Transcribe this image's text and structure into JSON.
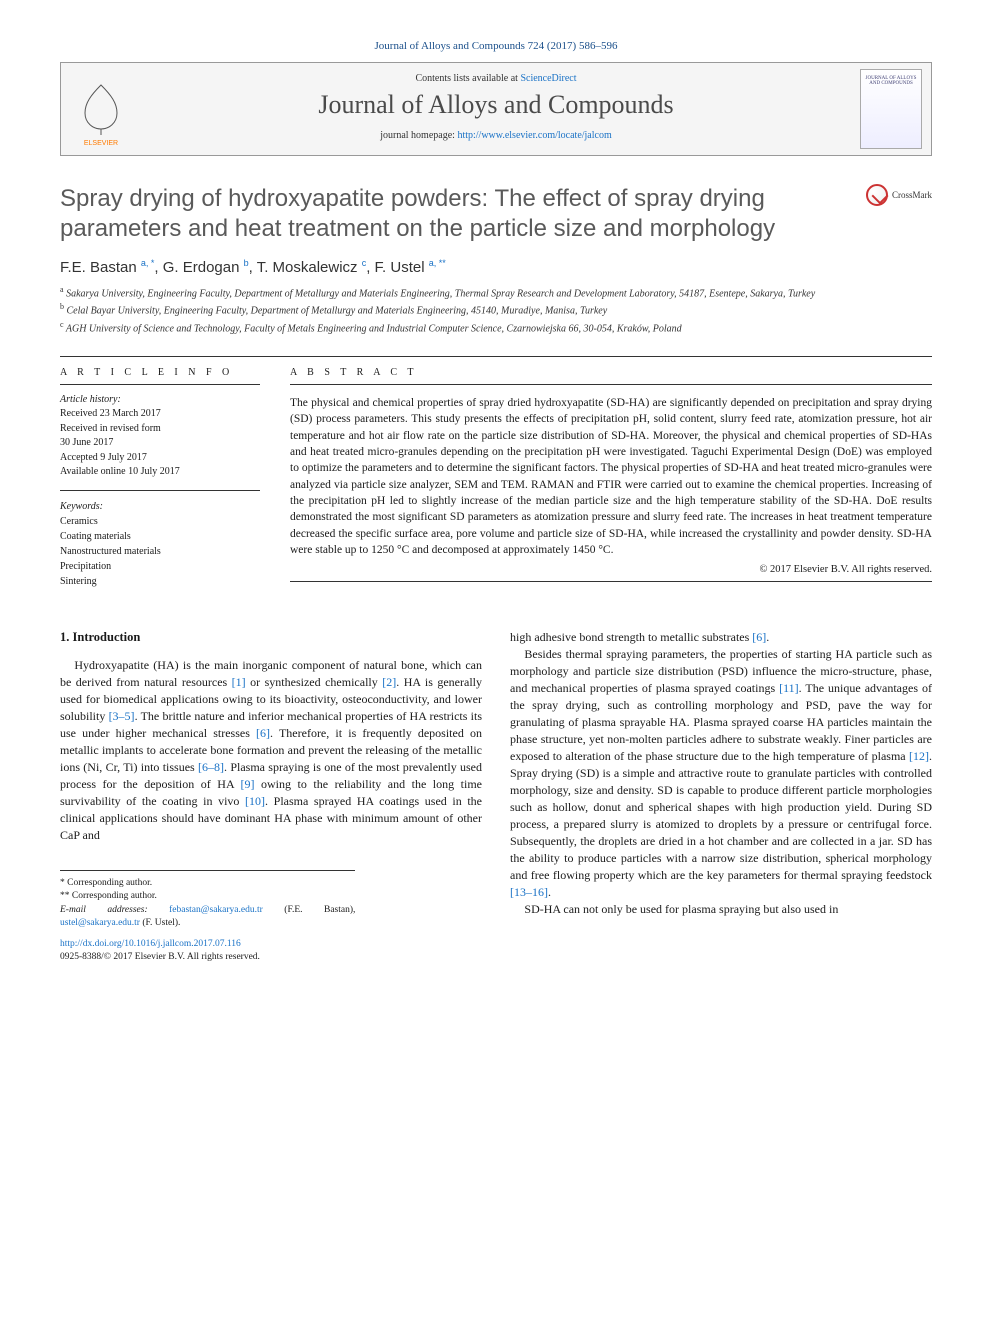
{
  "journal_ref": "Journal of Alloys and Compounds 724 (2017) 586–596",
  "header": {
    "contents_prefix": "Contents lists available at ",
    "contents_link": "ScienceDirect",
    "journal_name": "Journal of Alloys and Compounds",
    "homepage_prefix": "journal homepage: ",
    "homepage_url": "http://www.elsevier.com/locate/jalcom",
    "elsevier_label": "ELSEVIER",
    "cover_label": "JOURNAL OF ALLOYS AND COMPOUNDS"
  },
  "crossmark_label": "CrossMark",
  "title": "Spray drying of hydroxyapatite powders: The effect of spray drying parameters and heat treatment on the particle size and morphology",
  "authors_html": "F.E. Bastan <sup class='sup-link'>a, *</sup>, G. Erdogan <sup class='sup-link'>b</sup>, T. Moskalewicz <sup class='sup-link'>c</sup>, F. Ustel <sup class='sup-link'>a, **</sup>",
  "affiliations": [
    {
      "key": "a",
      "text": "Sakarya University, Engineering Faculty, Department of Metallurgy and Materials Engineering, Thermal Spray Research and Development Laboratory, 54187, Esentepe, Sakarya, Turkey"
    },
    {
      "key": "b",
      "text": "Celal Bayar University, Engineering Faculty, Department of Metallurgy and Materials Engineering, 45140, Muradiye, Manisa, Turkey"
    },
    {
      "key": "c",
      "text": "AGH University of Science and Technology, Faculty of Metals Engineering and Industrial Computer Science, Czarnowiejska 66, 30-054, Kraków, Poland"
    }
  ],
  "article_info": {
    "heading": "A R T I C L E  I N F O",
    "history_label": "Article history:",
    "history": [
      "Received 23 March 2017",
      "Received in revised form",
      "30 June 2017",
      "Accepted 9 July 2017",
      "Available online 10 July 2017"
    ],
    "keywords_label": "Keywords:",
    "keywords": [
      "Ceramics",
      "Coating materials",
      "Nanostructured materials",
      "Precipitation",
      "Sintering"
    ]
  },
  "abstract": {
    "heading": "A B S T R A C T",
    "text": "The physical and chemical properties of spray dried hydroxyapatite (SD-HA) are significantly depended on precipitation and spray drying (SD) process parameters. This study presents the effects of precipitation pH, solid content, slurry feed rate, atomization pressure, hot air temperature and hot air flow rate on the particle size distribution of SD-HA. Moreover, the physical and chemical properties of SD-HAs and heat treated micro-granules depending on the precipitation pH were investigated. Taguchi Experimental Design (DoE) was employed to optimize the parameters and to determine the significant factors. The physical properties of SD-HA and heat treated micro-granules were analyzed via particle size analyzer, SEM and TEM. RAMAN and FTIR were carried out to examine the chemical properties. Increasing of the precipitation pH led to slightly increase of the median particle size and the high temperature stability of the SD-HA. DoE results demonstrated the most significant SD parameters as atomization pressure and slurry feed rate. The increases in heat treatment temperature decreased the specific surface area, pore volume and particle size of SD-HA, while increased the crystallinity and powder density. SD-HA were stable up to 1250 °C and decomposed at approximately 1450 °C.",
    "copyright": "© 2017 Elsevier B.V. All rights reserved."
  },
  "intro": {
    "heading": "1. Introduction",
    "col1": [
      "Hydroxyapatite (HA) is the main inorganic component of natural bone, which can be derived from natural resources [1] or synthesized chemically [2]. HA is generally used for biomedical applications owing to its bioactivity, osteoconductivity, and lower solubility [3–5]. The brittle nature and inferior mechanical properties of HA restricts its use under higher mechanical stresses [6]. Therefore, it is frequently deposited on metallic implants to accelerate bone formation and prevent the releasing of the metallic ions (Ni, Cr, Ti) into tissues [6–8]. Plasma spraying is one of the most prevalently used process for the deposition of HA [9] owing to the reliability and the long time survivability of the coating in vivo [10]. Plasma sprayed HA coatings used in the clinical applications should have dominant HA phase with minimum amount of other CaP and"
    ],
    "col2": [
      "high adhesive bond strength to metallic substrates [6].",
      "Besides thermal spraying parameters, the properties of starting HA particle such as morphology and particle size distribution (PSD) influence the micro-structure, phase, and mechanical properties of plasma sprayed coatings [11]. The unique advantages of the spray drying, such as controlling morphology and PSD, pave the way for granulating of plasma sprayable HA. Plasma sprayed coarse HA particles maintain the phase structure, yet non-molten particles adhere to substrate weakly. Finer particles are exposed to alteration of the phase structure due to the high temperature of plasma [12]. Spray drying (SD) is a simple and attractive route to granulate particles with controlled morphology, size and density. SD is capable to produce different particle morphologies such as hollow, donut and spherical shapes with high production yield. During SD process, a prepared slurry is atomized to droplets by a pressure or centrifugal force. Subsequently, the droplets are dried in a hot chamber and are collected in a jar. SD has the ability to produce particles with a narrow size distribution, spherical morphology and free flowing property which are the key parameters for thermal spraying feedstock [13–16].",
      "SD-HA can not only be used for plasma spraying but also used in"
    ],
    "ref_map": {
      "[1]": true,
      "[2]": true,
      "[3–5]": true,
      "[6]": true,
      "[6–8]": true,
      "[9]": true,
      "[10]": true,
      "[11]": true,
      "[12]": true,
      "[13–16]": true
    }
  },
  "corresponding": {
    "star1": "* Corresponding author.",
    "star2": "** Corresponding author.",
    "emails_label": "E-mail addresses:",
    "email1": "febastan@sakarya.edu.tr",
    "email1_paren": "(F.E. Bastan),",
    "email2": "ustel@sakarya.edu.tr",
    "email2_paren": "(F. Ustel)."
  },
  "footer": {
    "doi": "http://dx.doi.org/10.1016/j.jallcom.2017.07.116",
    "issn_line": "0925-8388/© 2017 Elsevier B.V. All rights reserved."
  },
  "colors": {
    "link": "#1a72c6",
    "title_gray": "#5a5a5a",
    "elsevier_orange": "#ff7b00"
  }
}
